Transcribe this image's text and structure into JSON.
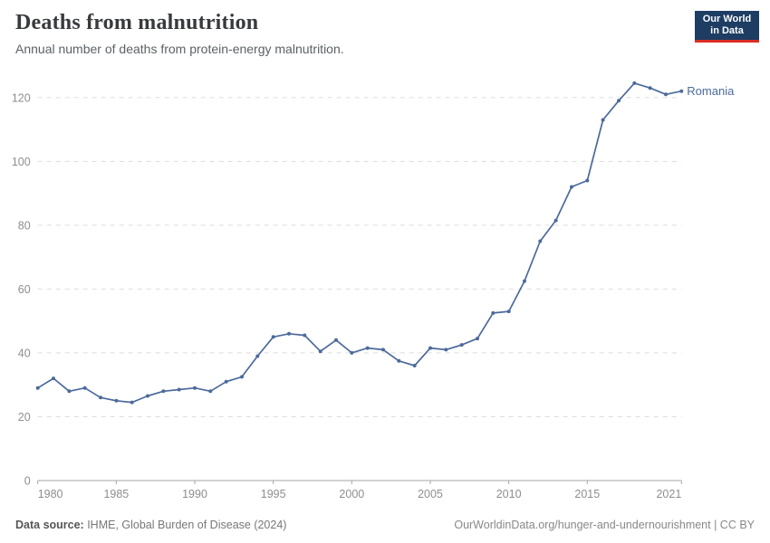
{
  "header": {
    "title": "Deaths from malnutrition",
    "subtitle": "Annual number of deaths from protein-energy malnutrition.",
    "logo": {
      "line1": "Our World",
      "line2": "in Data",
      "bg": "#1d3d63",
      "accent": "#dc2d25"
    }
  },
  "chart_data": {
    "type": "line",
    "title": "Deaths from malnutrition",
    "subtitle": "Annual number of deaths from protein-energy malnutrition.",
    "xlabel": "",
    "ylabel": "",
    "xlim": [
      1980,
      2021
    ],
    "ylim": [
      0,
      120
    ],
    "x_ticks": [
      1980,
      1985,
      1990,
      1995,
      2000,
      2005,
      2010,
      2015,
      2021
    ],
    "y_ticks": [
      0,
      20,
      40,
      60,
      80,
      100,
      120
    ],
    "grid": "horizontal-dashed",
    "legend": "end-of-line-label",
    "series": [
      {
        "name": "Romania",
        "color": "#4c6a9c",
        "x": [
          1980,
          1981,
          1982,
          1983,
          1984,
          1985,
          1986,
          1987,
          1988,
          1989,
          1990,
          1991,
          1992,
          1993,
          1994,
          1995,
          1996,
          1997,
          1998,
          1999,
          2000,
          2001,
          2002,
          2003,
          2004,
          2005,
          2006,
          2007,
          2008,
          2009,
          2010,
          2011,
          2012,
          2013,
          2014,
          2015,
          2016,
          2017,
          2018,
          2019,
          2020,
          2021
        ],
        "values": [
          29,
          32,
          28,
          29,
          26,
          25,
          24.5,
          26.5,
          28,
          28.5,
          29,
          28,
          31,
          32.5,
          39,
          45,
          46,
          45.5,
          40.5,
          44,
          40,
          41.5,
          41,
          37.5,
          36,
          41.5,
          41,
          42.5,
          44.5,
          52.5,
          53,
          62.5,
          75,
          81.5,
          92,
          94,
          113,
          119,
          124.5,
          123,
          121,
          122
        ]
      }
    ],
    "colors": {
      "gridline": "#dddddd",
      "axis": "#a5a5a5",
      "tick_label": "#8e8e8e"
    }
  },
  "footer": {
    "source_label": "Data source:",
    "source_value": " IHME, Global Burden of Disease (2024)",
    "link": "OurWorldinData.org/hunger-and-undernourishment | CC BY"
  }
}
